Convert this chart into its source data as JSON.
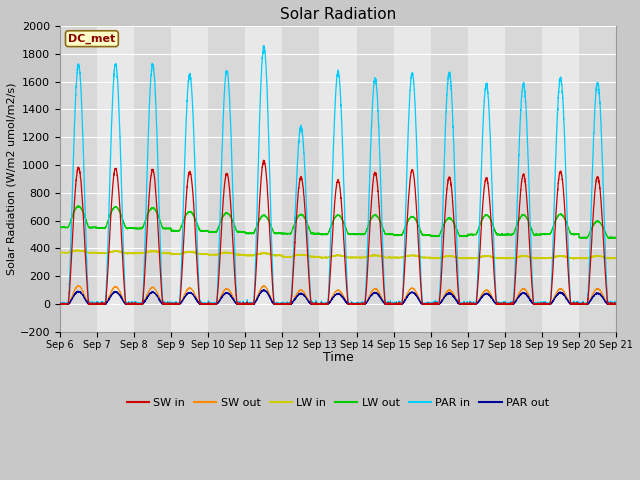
{
  "title": "Solar Radiation",
  "ylabel": "Solar Radiation (W/m2 umol/m2/s)",
  "xlabel": "Time",
  "site_label": "DC_met",
  "ylim": [
    -200,
    2000
  ],
  "yticks": [
    -200,
    0,
    200,
    400,
    600,
    800,
    1000,
    1200,
    1400,
    1600,
    1800,
    2000
  ],
  "fig_bg_color": "#c8c8c8",
  "plot_bg_color": "#e0e0e0",
  "band_colors": [
    "#d8d8d8",
    "#e8e8e8"
  ],
  "colors": {
    "SW_in": "#cc0000",
    "SW_out": "#ff8800",
    "LW_in": "#cccc00",
    "LW_out": "#00cc00",
    "PAR_in": "#00ccff",
    "PAR_out": "#000099"
  },
  "n_days": 15,
  "start_day": 6,
  "points_per_day": 288,
  "SW_in_peaks": [
    980,
    975,
    965,
    950,
    940,
    1030,
    910,
    890,
    945,
    965,
    910,
    905,
    930,
    950,
    915
  ],
  "PAR_in_peaks": [
    1720,
    1725,
    1720,
    1650,
    1680,
    1850,
    1270,
    1670,
    1620,
    1660,
    1660,
    1580,
    1580,
    1620,
    1590
  ],
  "LW_out_peaks": [
    540,
    540,
    530,
    490,
    480,
    460,
    490,
    490,
    490,
    470,
    460,
    500,
    500,
    510,
    420
  ],
  "LW_in_base": [
    370,
    365,
    365,
    360,
    355,
    350,
    340,
    335,
    335,
    335,
    330,
    330,
    330,
    330,
    330
  ],
  "SW_out_peaks": [
    130,
    125,
    120,
    115,
    110,
    130,
    100,
    100,
    110,
    115,
    100,
    100,
    110,
    110,
    110
  ],
  "PAR_out_peaks": [
    90,
    88,
    85,
    82,
    80,
    100,
    75,
    75,
    82,
    85,
    78,
    75,
    80,
    82,
    78
  ]
}
